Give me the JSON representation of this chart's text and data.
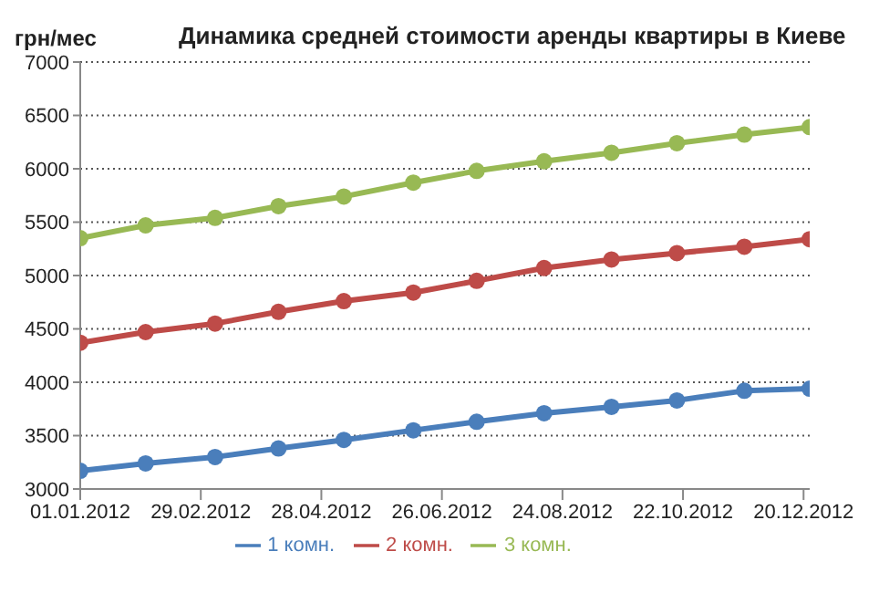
{
  "chart_data": {
    "type": "line",
    "title": "Динамика средней стоимости аренды квартиры в Киеве",
    "ylabel": "грн/мес",
    "x": [
      "2012-01-01",
      "2012-02-02",
      "2012-03-07",
      "2012-04-07",
      "2012-05-09",
      "2012-06-12",
      "2012-07-13",
      "2012-08-15",
      "2012-09-17",
      "2012-10-19",
      "2012-11-21",
      "2012-12-23"
    ],
    "series": [
      {
        "name": "1 комн.",
        "color": "#4a7ebb",
        "values": [
          3170,
          3240,
          3300,
          3380,
          3460,
          3550,
          3630,
          3710,
          3770,
          3830,
          3920,
          3940
        ]
      },
      {
        "name": "2 комн.",
        "color": "#be4b48",
        "values": [
          4370,
          4470,
          4550,
          4660,
          4760,
          4840,
          4950,
          5070,
          5150,
          5210,
          5270,
          5340
        ]
      },
      {
        "name": "3 комн.",
        "color": "#98b954",
        "values": [
          5350,
          5470,
          5540,
          5650,
          5740,
          5870,
          5980,
          6070,
          6150,
          6240,
          6320,
          6390
        ]
      }
    ],
    "xlim": [
      "2012-01-01",
      "2012-12-23"
    ],
    "xticks": [
      {
        "value": "2012-01-01",
        "label": "01.01.2012"
      },
      {
        "value": "2012-02-29",
        "label": "29.02.2012"
      },
      {
        "value": "2012-04-28",
        "label": "28.04.2012"
      },
      {
        "value": "2012-06-26",
        "label": "26.06.2012"
      },
      {
        "value": "2012-08-24",
        "label": "24.08.2012"
      },
      {
        "value": "2012-10-22",
        "label": "22.10.2012"
      },
      {
        "value": "2012-12-20",
        "label": "20.12.2012"
      }
    ],
    "ylim": [
      3000,
      7000
    ],
    "yticks": [
      3000,
      3500,
      4000,
      4500,
      5000,
      5500,
      6000,
      6500,
      7000
    ],
    "grid": "y",
    "legend": "bottom",
    "marker": "circle",
    "line_style": "solid"
  }
}
